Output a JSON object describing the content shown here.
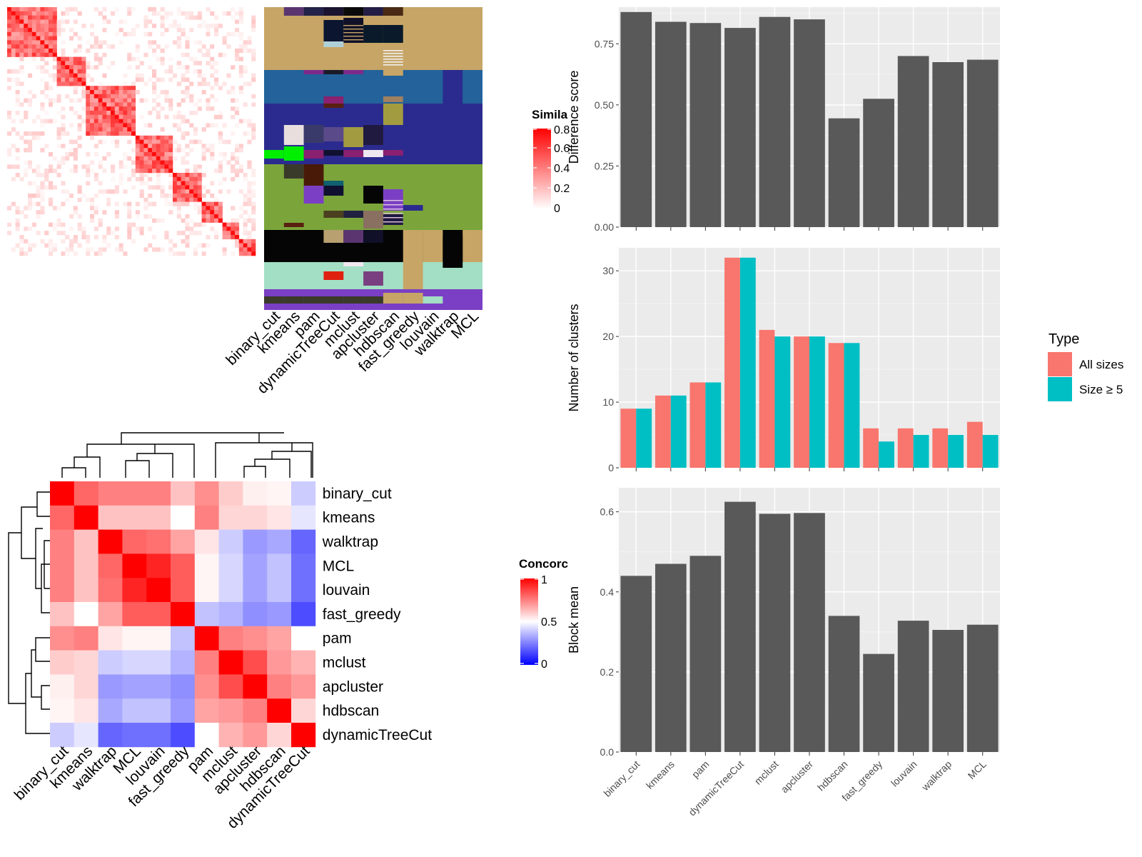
{
  "colors": {
    "bar_gray": "#595959",
    "panel_bg": "#ebebeb",
    "grid": "#ffffff",
    "all_sizes": "#F8766D",
    "size_ge5": "#00BFC4",
    "sim_high": "#ff0000",
    "sim_low": "#ffffff",
    "conc_low": "#0000ff",
    "conc_mid": "#ffffff",
    "conc_high": "#ff0000"
  },
  "similarity_legend": {
    "title": "Simila",
    "ticks": [
      "0.8",
      "0.6",
      "0.4",
      "0.2",
      "0"
    ]
  },
  "concordance_legend": {
    "title": "Concorc",
    "ticks": [
      "1",
      "0.5",
      "0"
    ]
  },
  "clustering_methods_top": [
    "binary_cut",
    "kmeans",
    "pam",
    "dynamicTreeCut",
    "mclust",
    "apcluster",
    "hdbscan",
    "fast_greedy",
    "louvain",
    "walktrap",
    "MCL"
  ],
  "type_legend": {
    "title": "Type",
    "items": [
      "All sizes",
      "Size ≥ 5"
    ]
  },
  "chart_data": [
    {
      "type": "heatmap",
      "title": "",
      "rows": [
        "binary_cut",
        "kmeans",
        "walktrap",
        "MCL",
        "louvain",
        "fast_greedy",
        "pam",
        "mclust",
        "apcluster",
        "hdbscan",
        "dynamicTreeCut"
      ],
      "cols": [
        "binary_cut",
        "kmeans",
        "walktrap",
        "MCL",
        "louvain",
        "fast_greedy",
        "pam",
        "mclust",
        "apcluster",
        "hdbscan",
        "dynamicTreeCut"
      ],
      "values": [
        [
          1.0,
          0.8,
          0.75,
          0.75,
          0.75,
          0.62,
          0.72,
          0.6,
          0.53,
          0.52,
          0.4
        ],
        [
          0.8,
          1.0,
          0.62,
          0.62,
          0.62,
          0.5,
          0.75,
          0.58,
          0.58,
          0.55,
          0.45
        ],
        [
          0.75,
          0.62,
          1.0,
          0.8,
          0.78,
          0.68,
          0.55,
          0.4,
          0.3,
          0.33,
          0.2
        ],
        [
          0.75,
          0.62,
          0.8,
          1.0,
          0.93,
          0.82,
          0.52,
          0.42,
          0.32,
          0.38,
          0.22
        ],
        [
          0.75,
          0.62,
          0.78,
          0.93,
          1.0,
          0.82,
          0.52,
          0.42,
          0.32,
          0.38,
          0.22
        ],
        [
          0.62,
          0.5,
          0.68,
          0.82,
          0.82,
          1.0,
          0.38,
          0.35,
          0.28,
          0.3,
          0.15
        ],
        [
          0.72,
          0.75,
          0.55,
          0.52,
          0.52,
          0.38,
          1.0,
          0.75,
          0.72,
          0.68,
          0.5
        ],
        [
          0.6,
          0.58,
          0.4,
          0.42,
          0.42,
          0.35,
          0.75,
          1.0,
          0.85,
          0.7,
          0.65
        ],
        [
          0.53,
          0.58,
          0.3,
          0.32,
          0.32,
          0.28,
          0.72,
          0.85,
          1.0,
          0.75,
          0.7
        ],
        [
          0.52,
          0.55,
          0.33,
          0.38,
          0.38,
          0.3,
          0.68,
          0.7,
          0.75,
          1.0,
          0.58
        ],
        [
          0.4,
          0.45,
          0.2,
          0.22,
          0.22,
          0.15,
          0.5,
          0.65,
          0.7,
          0.58,
          1.0
        ]
      ],
      "legend": "Concorc",
      "range": [
        0,
        1
      ]
    },
    {
      "type": "bar",
      "categories": [
        "binary_cut",
        "kmeans",
        "pam",
        "dynamicTreeCut",
        "mclust",
        "apcluster",
        "hdbscan",
        "fast_greedy",
        "louvain",
        "walktrap",
        "MCL"
      ],
      "values": [
        0.88,
        0.84,
        0.835,
        0.815,
        0.86,
        0.85,
        0.445,
        0.525,
        0.7,
        0.675,
        0.685
      ],
      "xlabel": "",
      "ylabel": "Difference score",
      "ylim": [
        0,
        0.9
      ],
      "yticks": [
        "0.00",
        "0.25",
        "0.50",
        "0.75"
      ],
      "grid": true
    },
    {
      "type": "bar",
      "categories": [
        "binary_cut",
        "kmeans",
        "pam",
        "dynamicTreeCut",
        "mclust",
        "apcluster",
        "hdbscan",
        "fast_greedy",
        "louvain",
        "walktrap",
        "MCL"
      ],
      "series": [
        {
          "name": "All sizes",
          "values": [
            9,
            11,
            13,
            32,
            21,
            20,
            19,
            6,
            6,
            6,
            7
          ]
        },
        {
          "name": "Size ≥ 5",
          "values": [
            9,
            11,
            13,
            32,
            20,
            20,
            19,
            4,
            5,
            5,
            5
          ]
        }
      ],
      "xlabel": "",
      "ylabel": "Number of clusters",
      "ylim": [
        0,
        33.5
      ],
      "yticks": [
        "0",
        "10",
        "20",
        "30"
      ],
      "legend_title": "Type",
      "legend_position": "right",
      "grid": true
    },
    {
      "type": "bar",
      "categories": [
        "binary_cut",
        "kmeans",
        "pam",
        "dynamicTreeCut",
        "mclust",
        "apcluster",
        "hdbscan",
        "fast_greedy",
        "louvain",
        "walktrap",
        "MCL"
      ],
      "values": [
        0.44,
        0.47,
        0.49,
        0.625,
        0.595,
        0.597,
        0.34,
        0.245,
        0.328,
        0.305,
        0.318
      ],
      "xlabel": "",
      "ylabel": "Block mean",
      "ylim": [
        0,
        0.66
      ],
      "yticks": [
        "0.0",
        "0.2",
        "0.4",
        "0.6"
      ],
      "grid": true
    }
  ]
}
